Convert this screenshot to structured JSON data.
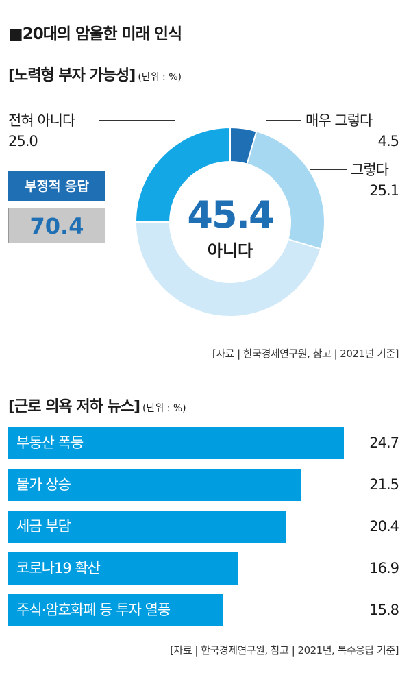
{
  "main_title": "■20대의 암울한 미래 인식",
  "sections": [
    {
      "title": "[노력형 부자 가능성]",
      "unit": "(단위 : %)"
    },
    {
      "title": "[근로 의욕 저하 뉴스]",
      "unit": "(단위 : %)"
    }
  ],
  "negative": {
    "label": "부정적 응답",
    "value": "70.4"
  },
  "sources": [
    "[자료 | 한국경제연구원, 참고 | 2021년 기준]",
    "[자료 | 한국경제연구원, 참고 | 2021년, 복수응답 기준]"
  ],
  "colors": {
    "dark_blue": "#1f6fb5",
    "light_blue": "#a7d8f2",
    "pale_blue": "#cfe9f8",
    "mid_blue": "#009ee0",
    "gray": "#c8c8c8"
  },
  "chart_data": [
    {
      "type": "pie",
      "center_value": "45.4",
      "center_label": "아니다",
      "slices": [
        {
          "label": "매우 그렇다",
          "value": 4.5,
          "color": "#1f6fb5"
        },
        {
          "label": "그렇다",
          "value": 25.1,
          "color": "#a7d8f2"
        },
        {
          "label": "아니다",
          "value": 45.4,
          "color": "#cfe9f8"
        },
        {
          "label": "전혀 아니다",
          "value": 25.0,
          "color": "#14a7e6"
        }
      ],
      "value_labels": {
        "매우 그렇다": "4.5",
        "그렇다": "25.1",
        "전혀 아니다": "25.0"
      }
    },
    {
      "type": "bar",
      "orientation": "horizontal",
      "categories": [
        "부동산 폭등",
        "물가 상승",
        "세금 부담",
        "코로나19 확산",
        "주식·암호화폐 등 투자 열풍"
      ],
      "values": [
        24.7,
        21.5,
        20.4,
        16.9,
        15.8
      ],
      "value_labels": [
        "24.7",
        "21.5",
        "20.4",
        "16.9",
        "15.8"
      ],
      "color": "#009ee0"
    }
  ]
}
